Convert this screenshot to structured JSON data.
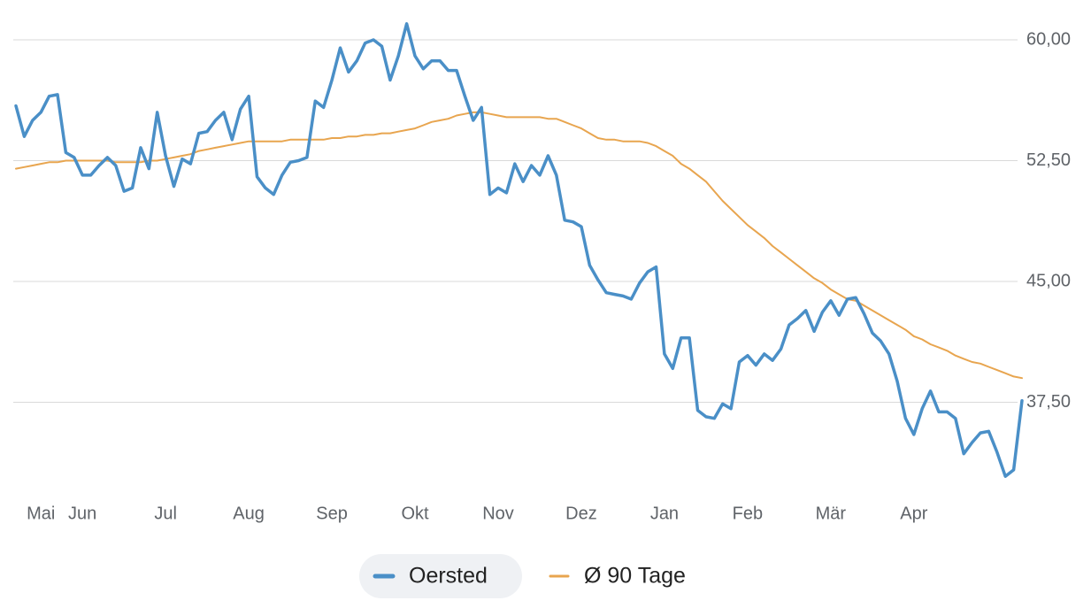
{
  "chart_data": {
    "type": "line",
    "categories": [
      null,
      null,
      null,
      "Mai",
      null,
      null,
      null,
      null,
      "Jun",
      null,
      null,
      null,
      null,
      null,
      null,
      null,
      null,
      null,
      "Jul",
      null,
      null,
      null,
      null,
      null,
      null,
      null,
      null,
      null,
      "Aug",
      null,
      null,
      null,
      null,
      null,
      null,
      null,
      null,
      null,
      "Sep",
      null,
      null,
      null,
      null,
      null,
      null,
      null,
      null,
      null,
      "Okt",
      null,
      null,
      null,
      null,
      null,
      null,
      null,
      null,
      null,
      "Nov",
      null,
      null,
      null,
      null,
      null,
      null,
      null,
      null,
      null,
      "Dez",
      null,
      null,
      null,
      null,
      null,
      null,
      null,
      null,
      null,
      "Jan",
      null,
      null,
      null,
      null,
      null,
      null,
      null,
      null,
      null,
      "Feb",
      null,
      null,
      null,
      null,
      null,
      null,
      null,
      null,
      null,
      "Mär",
      null,
      null,
      null,
      null,
      null,
      null,
      null,
      null,
      null,
      "Apr",
      null,
      null,
      null,
      null,
      null,
      null,
      null,
      null,
      null,
      null,
      null,
      null,
      null
    ],
    "series": [
      {
        "name": "Oersted",
        "color": "#4a8fc7",
        "values": [
          55.9,
          54.0,
          55.0,
          55.5,
          56.5,
          56.6,
          53.0,
          52.7,
          51.6,
          51.6,
          52.2,
          52.7,
          52.2,
          50.6,
          50.8,
          53.3,
          52.0,
          55.5,
          52.8,
          50.9,
          52.6,
          52.3,
          54.2,
          54.3,
          55.0,
          55.5,
          53.8,
          55.7,
          56.5,
          51.5,
          50.8,
          50.4,
          51.6,
          52.4,
          52.5,
          52.7,
          56.2,
          55.8,
          57.5,
          59.5,
          58.0,
          58.7,
          59.8,
          60.0,
          59.6,
          57.5,
          59.0,
          61.0,
          59.0,
          58.2,
          58.7,
          58.7,
          58.1,
          58.1,
          56.5,
          55.0,
          55.8,
          50.4,
          50.8,
          50.5,
          52.3,
          51.2,
          52.2,
          51.6,
          52.8,
          51.6,
          48.8,
          48.7,
          48.4,
          46.0,
          45.1,
          44.3,
          44.2,
          44.1,
          43.9,
          44.9,
          45.6,
          45.9,
          40.5,
          39.6,
          41.5,
          41.5,
          37.0,
          36.6,
          36.5,
          37.4,
          37.1,
          40.0,
          40.4,
          39.8,
          40.5,
          40.1,
          40.8,
          42.3,
          42.7,
          43.2,
          41.9,
          43.1,
          43.8,
          42.9,
          43.9,
          44.0,
          43.0,
          41.8,
          41.3,
          40.5,
          38.8,
          36.5,
          35.5,
          37.1,
          38.2,
          36.9,
          36.9,
          36.5,
          34.3,
          35.0,
          35.6,
          35.7,
          34.4,
          32.9,
          33.3,
          37.6
        ]
      },
      {
        "name": "Ø 90 Tage",
        "color": "#e8a54f",
        "values": [
          52.0,
          52.1,
          52.2,
          52.3,
          52.4,
          52.4,
          52.5,
          52.5,
          52.5,
          52.5,
          52.5,
          52.5,
          52.4,
          52.4,
          52.4,
          52.4,
          52.5,
          52.5,
          52.6,
          52.7,
          52.8,
          52.9,
          53.1,
          53.2,
          53.3,
          53.4,
          53.5,
          53.6,
          53.7,
          53.7,
          53.7,
          53.7,
          53.7,
          53.8,
          53.8,
          53.8,
          53.8,
          53.8,
          53.9,
          53.9,
          54.0,
          54.0,
          54.1,
          54.1,
          54.2,
          54.2,
          54.3,
          54.4,
          54.5,
          54.7,
          54.9,
          55.0,
          55.1,
          55.3,
          55.4,
          55.5,
          55.5,
          55.4,
          55.3,
          55.2,
          55.2,
          55.2,
          55.2,
          55.2,
          55.1,
          55.1,
          54.9,
          54.7,
          54.5,
          54.2,
          53.9,
          53.8,
          53.8,
          53.7,
          53.7,
          53.7,
          53.6,
          53.4,
          53.1,
          52.8,
          52.3,
          52.0,
          51.6,
          51.2,
          50.6,
          50.0,
          49.5,
          49.0,
          48.5,
          48.1,
          47.7,
          47.2,
          46.8,
          46.4,
          46.0,
          45.6,
          45.2,
          44.9,
          44.5,
          44.2,
          43.9,
          43.8,
          43.5,
          43.2,
          42.9,
          42.6,
          42.3,
          42.0,
          41.6,
          41.4,
          41.1,
          40.9,
          40.7,
          40.4,
          40.2,
          40.0,
          39.9,
          39.7,
          39.5,
          39.3,
          39.1,
          39.0
        ]
      }
    ],
    "ylim": [
      32,
      62
    ],
    "yticks": [
      {
        "value": 37.5,
        "label": "37,50"
      },
      {
        "value": 45,
        "label": "45,00"
      },
      {
        "value": 52.5,
        "label": "52,50"
      },
      {
        "value": 60,
        "label": "60,00"
      }
    ],
    "grid": true,
    "legend": "bottom"
  }
}
